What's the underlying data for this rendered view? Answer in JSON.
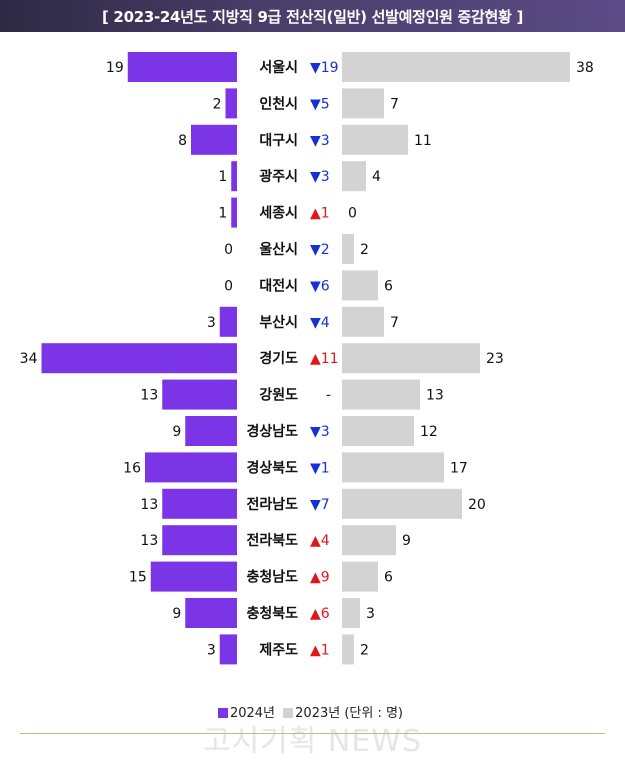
{
  "header": {
    "title": "[ 2023-24년도 지방직 9급 전산직(일반) 선발예정인원 증감현황 ]"
  },
  "legend": {
    "label_2024": "2024년",
    "label_2023": "2023년 (단위 : 명)",
    "color_2024": "#7b35e6",
    "color_2023": "#d3d3d3"
  },
  "watermark": "고시기획 NEWS",
  "colors": {
    "up": "#e0161c",
    "down": "#1530d6",
    "neutral": "#222222"
  },
  "chart_data": {
    "type": "bar",
    "categories": [
      "서울시",
      "인천시",
      "대구시",
      "광주시",
      "세종시",
      "울산시",
      "대전시",
      "부산시",
      "경기도",
      "강원도",
      "경상남도",
      "경상북도",
      "전라남도",
      "전라북도",
      "충청남도",
      "충청북도",
      "제주도"
    ],
    "series": [
      {
        "name": "2024년",
        "values": [
          19,
          2,
          8,
          1,
          1,
          0,
          0,
          3,
          34,
          13,
          9,
          16,
          13,
          13,
          15,
          9,
          3
        ]
      },
      {
        "name": "2023년",
        "values": [
          38,
          7,
          11,
          4,
          0,
          2,
          6,
          7,
          23,
          13,
          12,
          17,
          20,
          9,
          6,
          3,
          2
        ]
      }
    ],
    "changes": [
      {
        "dir": "down",
        "label": "▼19"
      },
      {
        "dir": "down",
        "label": "▼5"
      },
      {
        "dir": "down",
        "label": "▼3"
      },
      {
        "dir": "down",
        "label": "▼3"
      },
      {
        "dir": "up",
        "label": "▲1"
      },
      {
        "dir": "down",
        "label": "▼2"
      },
      {
        "dir": "down",
        "label": "▼6"
      },
      {
        "dir": "down",
        "label": "▼4"
      },
      {
        "dir": "up",
        "label": "▲11"
      },
      {
        "dir": "none",
        "label": "-"
      },
      {
        "dir": "down",
        "label": "▼3"
      },
      {
        "dir": "down",
        "label": "▼1"
      },
      {
        "dir": "down",
        "label": "▼7"
      },
      {
        "dir": "up",
        "label": "▲4"
      },
      {
        "dir": "up",
        "label": "▲9"
      },
      {
        "dir": "up",
        "label": "▲6"
      },
      {
        "dir": "up",
        "label": "▲1"
      }
    ]
  }
}
